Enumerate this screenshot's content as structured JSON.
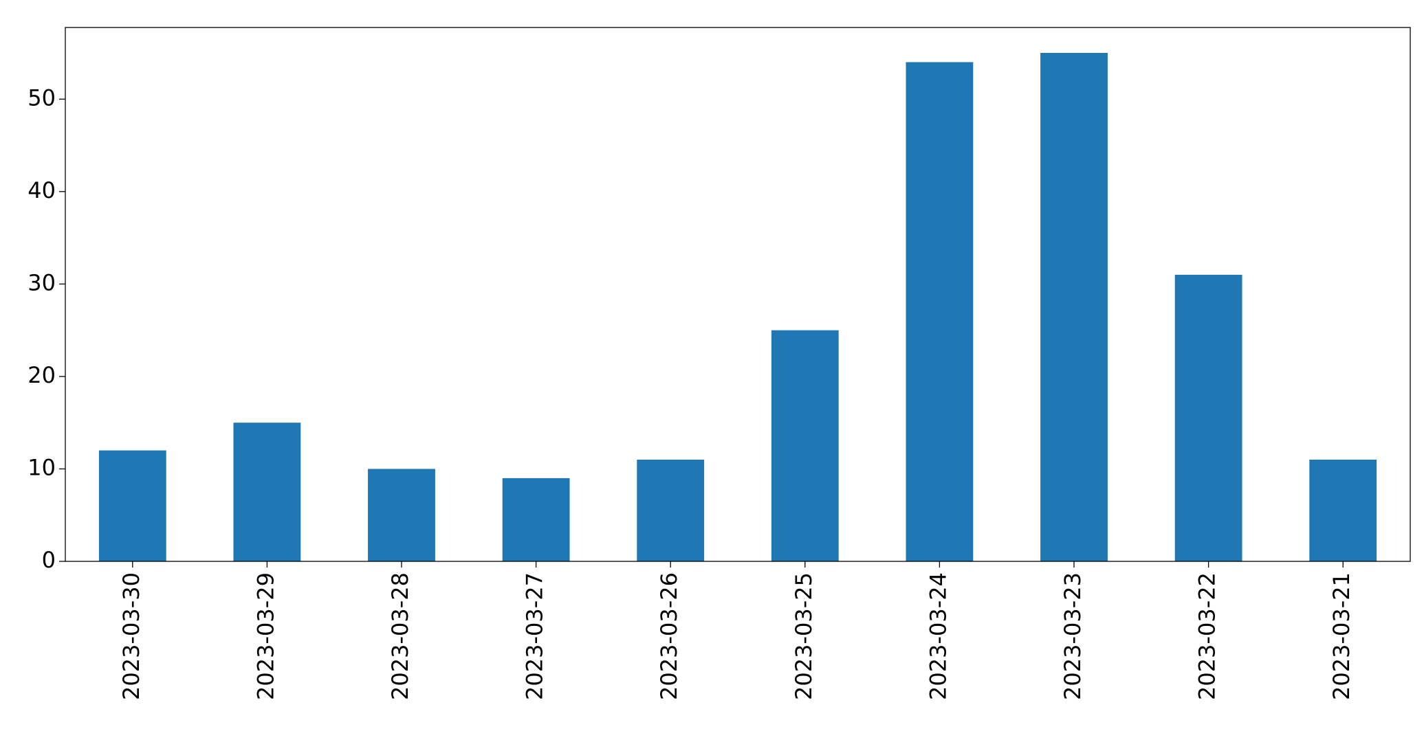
{
  "chart_data": {
    "type": "bar",
    "categories": [
      "2023-03-30",
      "2023-03-29",
      "2023-03-28",
      "2023-03-27",
      "2023-03-26",
      "2023-03-25",
      "2023-03-24",
      "2023-03-23",
      "2023-03-22",
      "2023-03-21"
    ],
    "values": [
      12,
      15,
      10,
      9,
      11,
      25,
      54,
      55,
      31,
      11
    ],
    "color": "#1f77b4",
    "ylim": [
      0,
      57.75
    ],
    "yticks": [
      0,
      10,
      20,
      30,
      40,
      50
    ],
    "grid": false
  }
}
